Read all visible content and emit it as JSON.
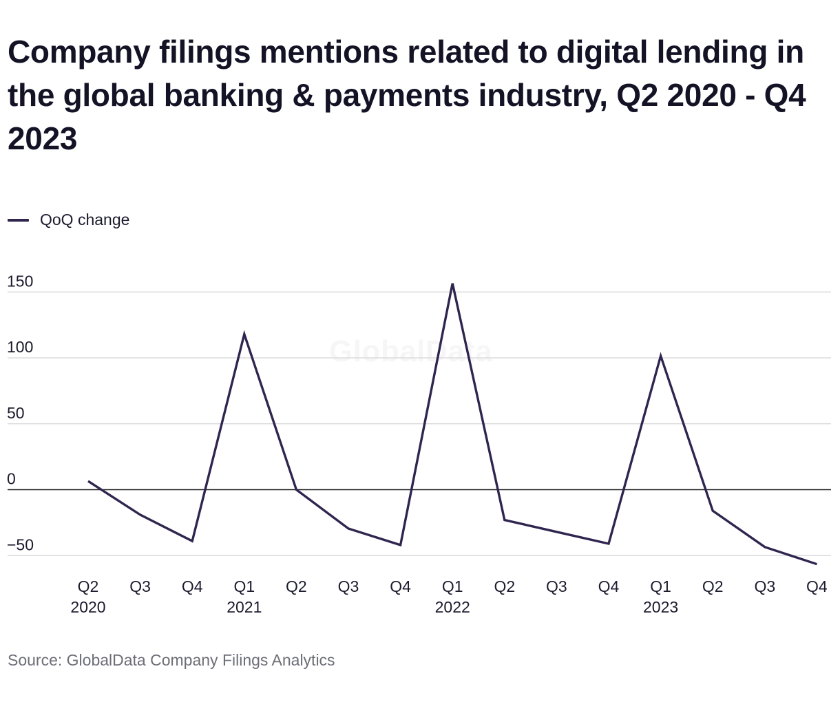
{
  "title": "Company filings mentions related to digital lending in the global banking & payments industry, Q2 2020 - Q4 2023",
  "legend": {
    "label": "QoQ change",
    "color": "#30254f"
  },
  "watermark": "GlobalData",
  "source": "Source: GlobalData Company Filings Analytics",
  "chart_data": {
    "type": "line",
    "title": "Company filings mentions related to digital lending in the global banking & payments industry, Q2 2020 - Q4 2023",
    "xlabel": "",
    "ylabel": "",
    "ylim": [
      -55,
      155
    ],
    "yticks": [
      -50,
      0,
      50,
      100,
      150
    ],
    "ytick_labels": [
      "−50",
      "0",
      "50",
      "100",
      "150"
    ],
    "grid": true,
    "legend_position": "top-left",
    "categories": [
      "Q2 2020",
      "Q3 2020",
      "Q4 2020",
      "Q1 2021",
      "Q2 2021",
      "Q3 2021",
      "Q4 2021",
      "Q1 2022",
      "Q2 2022",
      "Q3 2022",
      "Q4 2022",
      "Q1 2023",
      "Q2 2023",
      "Q3 2023",
      "Q4 2023"
    ],
    "tick_labels": [
      {
        "quarter": "Q2",
        "year": "2020"
      },
      {
        "quarter": "Q3",
        "year": ""
      },
      {
        "quarter": "Q4",
        "year": ""
      },
      {
        "quarter": "Q1",
        "year": "2021"
      },
      {
        "quarter": "Q2",
        "year": ""
      },
      {
        "quarter": "Q3",
        "year": ""
      },
      {
        "quarter": "Q4",
        "year": ""
      },
      {
        "quarter": "Q1",
        "year": "2022"
      },
      {
        "quarter": "Q2",
        "year": ""
      },
      {
        "quarter": "Q3",
        "year": ""
      },
      {
        "quarter": "Q4",
        "year": ""
      },
      {
        "quarter": "Q1",
        "year": "2023"
      },
      {
        "quarter": "Q2",
        "year": ""
      },
      {
        "quarter": "Q3",
        "year": ""
      },
      {
        "quarter": "Q4",
        "year": ""
      }
    ],
    "series": [
      {
        "name": "QoQ change",
        "color": "#30254f",
        "values": [
          6.5,
          -19,
          -39,
          118,
          0,
          -29.5,
          -42,
          156.5,
          -23,
          -32,
          -41,
          101.5,
          -16,
          -43.5,
          -56.5
        ]
      }
    ]
  }
}
